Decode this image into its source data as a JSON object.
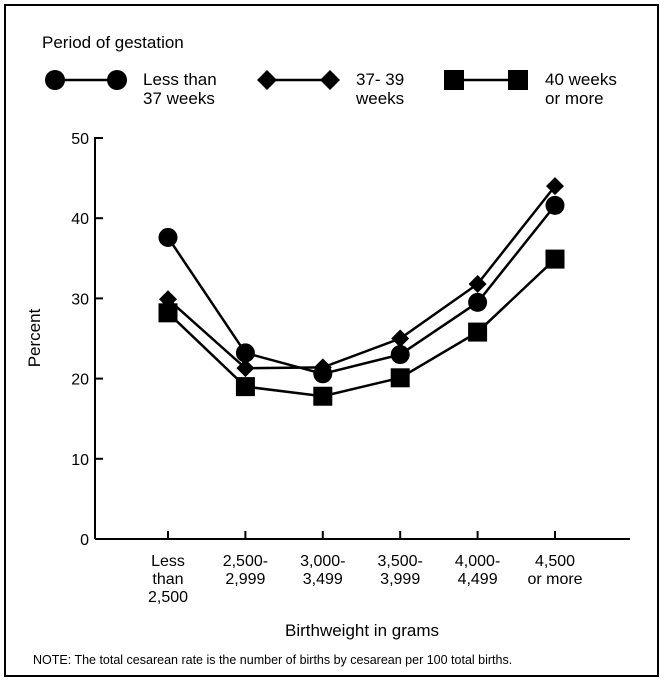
{
  "legend": {
    "title": "Period of gestation",
    "items": [
      {
        "marker": "circle",
        "label_line1": "Less than",
        "label_line2": "37 weeks"
      },
      {
        "marker": "diamond",
        "label_line1": "37- 39",
        "label_line2": "weeks"
      },
      {
        "marker": "square",
        "label_line1": "40 weeks",
        "label_line2": "or more"
      }
    ]
  },
  "note": "NOTE: The total cesarean rate is the number of births by cesarean per 100 total births.",
  "chart_data": {
    "type": "line",
    "title": "",
    "xlabel": "Birthweight in grams",
    "ylabel": "Percent",
    "ylim": [
      0,
      50
    ],
    "yticks": [
      0,
      10,
      20,
      30,
      40,
      50
    ],
    "grid": false,
    "legend_position": "top",
    "categories": [
      [
        "Less",
        "than",
        "2,500"
      ],
      [
        "2,500-",
        "2,999"
      ],
      [
        "3,000-",
        "3,499"
      ],
      [
        "3,500-",
        "3,999"
      ],
      [
        "4,000-",
        "4,499"
      ],
      [
        "4,500",
        "or more"
      ]
    ],
    "series": [
      {
        "name": "Less than 37 weeks",
        "marker": "circle",
        "values": [
          37.6,
          23.2,
          20.6,
          23.0,
          29.5,
          41.6
        ]
      },
      {
        "name": "37- 39 weeks",
        "marker": "diamond",
        "values": [
          29.9,
          21.3,
          21.4,
          25.0,
          31.8,
          44.0
        ]
      },
      {
        "name": "40 weeks or more",
        "marker": "square",
        "values": [
          28.2,
          19.0,
          17.8,
          20.1,
          25.8,
          34.9
        ]
      }
    ]
  }
}
